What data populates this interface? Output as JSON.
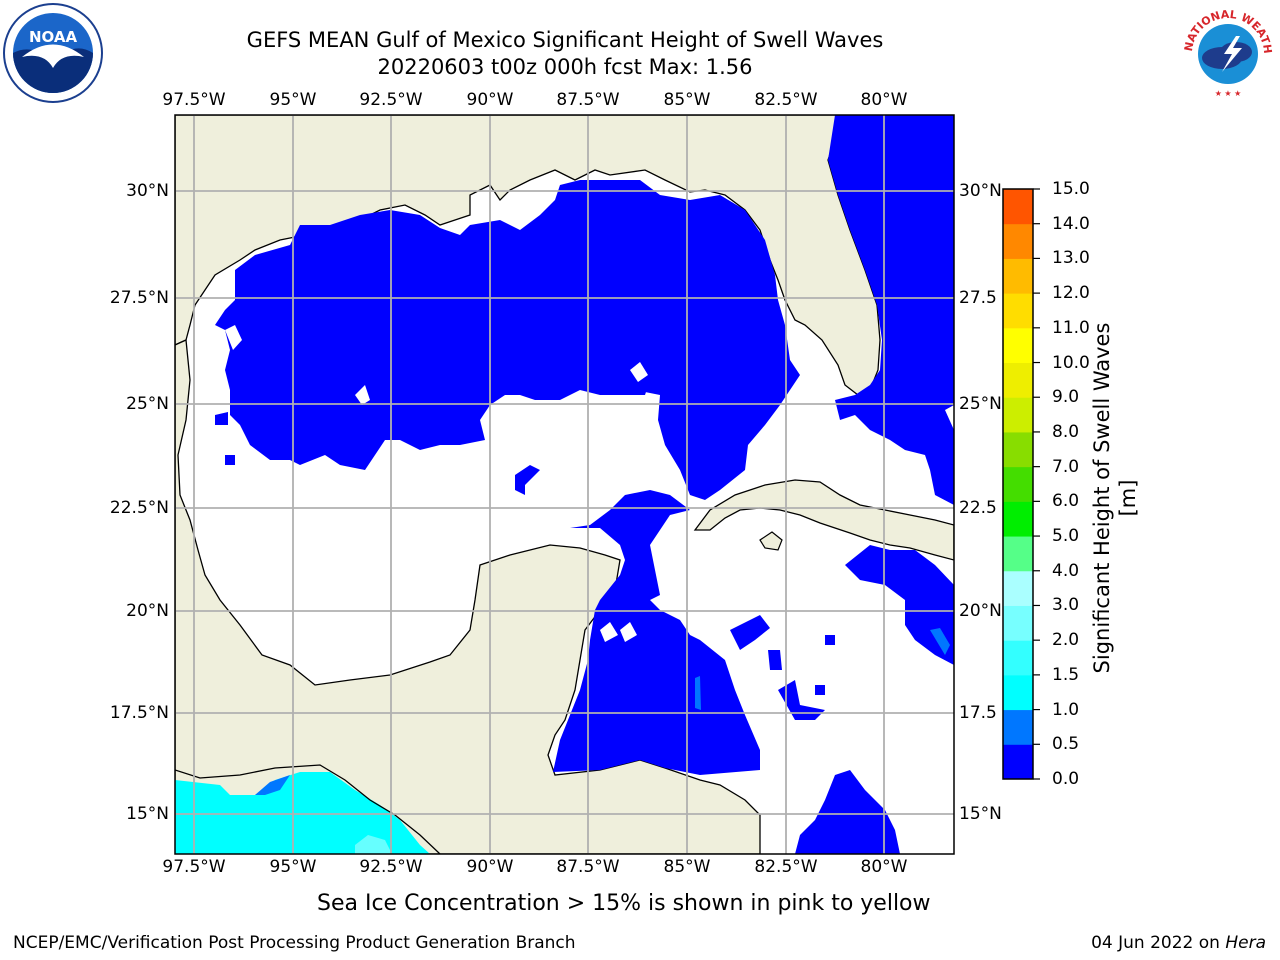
{
  "header": {
    "title_line1": "GEFS MEAN Gulf of Mexico Significant Height of Swell Waves",
    "title_line2": "20220603 t00z 000h fcst   Max: 1.56"
  },
  "logos": {
    "left": "NOAA",
    "right_text": "NATIONAL WEATHER SERVICE"
  },
  "map": {
    "lon_labels": [
      "97.5°W",
      "95°W",
      "92.5°W",
      "90°W",
      "87.5°W",
      "85°W",
      "82.5°W",
      "80°W"
    ],
    "lat_labels_left": [
      "30°N",
      "27.5°N",
      "25°N",
      "22.5°N",
      "20°N",
      "17.5°N",
      "15°N"
    ],
    "lat_labels_right": [
      "30°N",
      "27.5",
      "25°N",
      "22.5",
      "20°N",
      "17.5",
      "15°N"
    ],
    "lon_range": [
      -98,
      -78.2
    ],
    "lat_range": [
      14,
      32
    ],
    "colors": {
      "land": "#efefdc",
      "ocean_zero": "#ffffff",
      "swell_low": "#0000ff",
      "grid": "#b0b0b0"
    }
  },
  "colorbar": {
    "label": "Significant Height of Swell Waves [m]",
    "ticks": [
      "15.0",
      "14.0",
      "13.0",
      "12.0",
      "11.0",
      "10.0",
      "9.0",
      "8.0",
      "7.0",
      "6.0",
      "5.0",
      "4.0",
      "3.0",
      "2.0",
      "1.5",
      "1.0",
      "0.5",
      "0.0"
    ],
    "colors_bottom_to_top": [
      "#0000ff",
      "#0077ff",
      "#00ffff",
      "#33ffff",
      "#77ffff",
      "#aaffff",
      "#55ff88",
      "#00ee00",
      "#44dd00",
      "#88dd00",
      "#ccee00",
      "#eeee00",
      "#ffff00",
      "#ffdd00",
      "#ffbb00",
      "#ff8800",
      "#ff5500",
      "#ff2200",
      "#ff0000"
    ]
  },
  "note": "Sea Ice Concentration > 15% is shown in pink to yellow",
  "footer": {
    "left": "NCEP/EMC/Verification Post Processing Product Generation Branch",
    "right_date": "04 Jun 2022 on ",
    "right_machine": "Hera"
  }
}
